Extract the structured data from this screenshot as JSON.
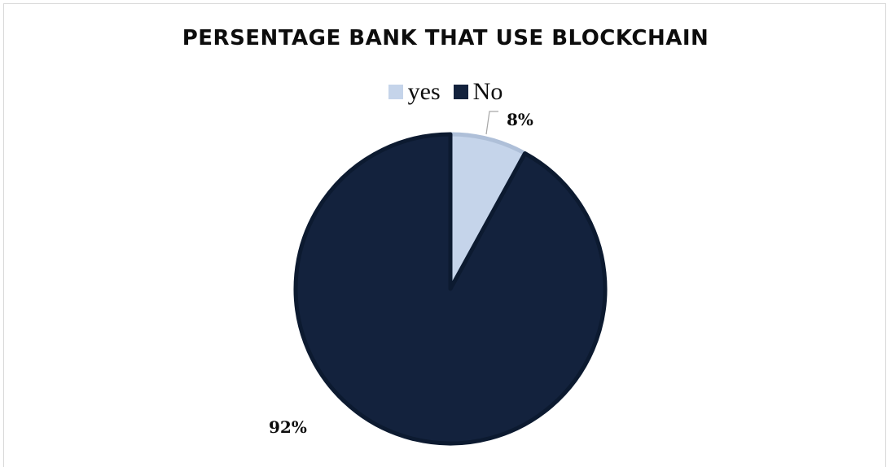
{
  "chart_data": {
    "type": "pie",
    "title": "PERSENTAGE BANK THAT USE BLOCKCHAIN",
    "categories": [
      "yes",
      "No"
    ],
    "values": [
      8,
      92
    ],
    "data_labels": [
      "8%",
      "92%"
    ],
    "colors": [
      "#c5d4ea",
      "#13223d"
    ],
    "legend_position": "top"
  }
}
